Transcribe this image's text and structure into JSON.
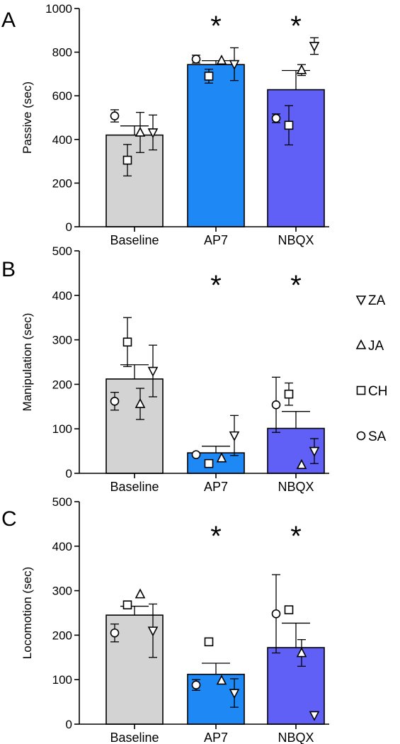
{
  "chart_data": [
    {
      "panel": "A",
      "type": "bar",
      "ylabel": "Passive (sec)",
      "ylim": [
        0,
        1000
      ],
      "yticks": [
        0,
        200,
        400,
        600,
        800,
        1000
      ],
      "categories": [
        "Baseline",
        "AP7",
        "NBQX"
      ],
      "values": [
        420,
        743,
        628
      ],
      "errors": [
        42,
        18,
        88
      ],
      "significant": [
        false,
        true,
        true
      ],
      "significance_label": "*",
      "subjects": [
        {
          "name": "SA",
          "values": [
            508,
            768,
            497
          ],
          "errors": [
            28,
            18,
            20
          ]
        },
        {
          "name": "CH",
          "values": [
            305,
            690,
            465
          ],
          "errors": [
            72,
            32,
            90
          ]
        },
        {
          "name": "JA",
          "values": [
            432,
            762,
            718
          ],
          "errors": [
            92,
            0,
            25
          ]
        },
        {
          "name": "ZA",
          "values": [
            432,
            745,
            828
          ],
          "errors": [
            80,
            75,
            38
          ]
        }
      ]
    },
    {
      "panel": "B",
      "type": "bar",
      "ylabel": "Manipulation (sec)",
      "ylim": [
        0,
        500
      ],
      "yticks": [
        0,
        100,
        200,
        300,
        400,
        500
      ],
      "categories": [
        "Baseline",
        "AP7",
        "NBQX"
      ],
      "values": [
        212,
        46,
        101
      ],
      "errors": [
        32,
        15,
        38
      ],
      "significant": [
        false,
        true,
        true
      ],
      "significance_label": "*",
      "subjects": [
        {
          "name": "SA",
          "values": [
            162,
            42,
            154
          ],
          "errors": [
            20,
            0,
            62
          ]
        },
        {
          "name": "CH",
          "values": [
            295,
            22,
            178
          ],
          "errors": [
            55,
            0,
            25
          ]
        },
        {
          "name": "JA",
          "values": [
            156,
            34,
            19
          ],
          "errors": [
            35,
            0,
            0
          ]
        },
        {
          "name": "ZA",
          "values": [
            230,
            85,
            50
          ],
          "errors": [
            58,
            45,
            28
          ]
        }
      ]
    },
    {
      "panel": "C",
      "type": "bar",
      "ylabel": "Locomotion (sec)",
      "ylim": [
        0,
        500
      ],
      "yticks": [
        0,
        100,
        200,
        300,
        400,
        500
      ],
      "categories": [
        "Baseline",
        "AP7",
        "NBQX"
      ],
      "values": [
        245,
        112,
        172
      ],
      "errors": [
        20,
        25,
        55
      ],
      "significant": [
        false,
        true,
        true
      ],
      "significance_label": "*",
      "subjects": [
        {
          "name": "SA",
          "values": [
            205,
            88,
            248
          ],
          "errors": [
            20,
            12,
            88
          ]
        },
        {
          "name": "CH",
          "values": [
            268,
            185,
            257
          ],
          "errors": [
            0,
            0,
            0
          ]
        },
        {
          "name": "JA",
          "values": [
            292,
            98,
            160
          ],
          "errors": [
            0,
            0,
            30
          ]
        },
        {
          "name": "ZA",
          "values": [
            210,
            70,
            20
          ],
          "errors": [
            60,
            32,
            0
          ]
        }
      ]
    }
  ],
  "legend": {
    "placement": "right",
    "entries": [
      {
        "name": "ZA",
        "marker": "triangle-down"
      },
      {
        "name": "JA",
        "marker": "triangle-up"
      },
      {
        "name": "CH",
        "marker": "square"
      },
      {
        "name": "SA",
        "marker": "circle"
      }
    ]
  },
  "colors": {
    "Baseline": "#d3d3d3",
    "AP7": "#1e88f5",
    "NBQX": "#6060f6",
    "marker_fill": "#ffffff",
    "stroke": "#000000"
  }
}
